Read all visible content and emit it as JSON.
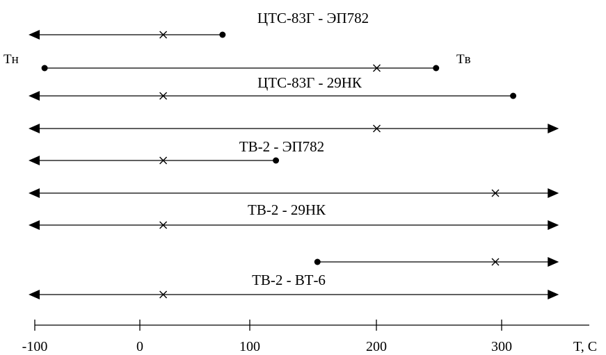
{
  "diagram": {
    "x_axis": {
      "ticks": [
        -100,
        0,
        100,
        200,
        300
      ],
      "tick_labels": [
        "-100",
        "0",
        "100",
        "200",
        "300"
      ],
      "unit_label": "T, C"
    },
    "end_labels": {
      "lower": "Tн",
      "upper": "Tв"
    },
    "pair_labels": [
      "ЦТС-83Г - ЭП782",
      "ЦТС-83Г - 29НК",
      "ТВ-2 - ЭП782",
      "ТВ-2 - 29НК",
      "ТВ-2 - ВТ-6"
    ],
    "ranges": [
      {
        "start": -90,
        "end": 70,
        "start_marker": "arrow",
        "end_marker": "dot",
        "cross": 20
      },
      {
        "start": -80,
        "end": 250,
        "start_marker": "dot",
        "end_marker": "dot",
        "cross": 200
      },
      {
        "start": -90,
        "end": 315,
        "start_marker": "arrow",
        "end_marker": "dot",
        "cross": 20
      },
      {
        "start": -90,
        "end": 350,
        "start_marker": "arrow",
        "end_marker": "arrow",
        "cross": 200
      },
      {
        "start": -90,
        "end": 115,
        "start_marker": "arrow",
        "end_marker": "dot",
        "cross": 20
      },
      {
        "start": -90,
        "end": 350,
        "start_marker": "arrow",
        "end_marker": "arrow",
        "cross": 300
      },
      {
        "start": -90,
        "end": 350,
        "start_marker": "arrow",
        "end_marker": "arrow",
        "cross": 20
      },
      {
        "start": 150,
        "end": 350,
        "start_marker": "dot",
        "end_marker": "arrow",
        "cross": 300
      },
      {
        "start": -90,
        "end": 350,
        "start_marker": "arrow",
        "end_marker": "arrow",
        "cross": 20
      }
    ]
  }
}
